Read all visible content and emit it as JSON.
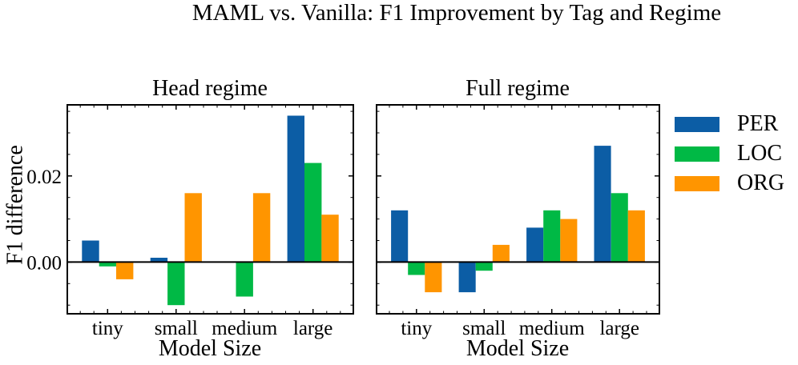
{
  "title": "MAML vs. Vanilla: F1 Improvement by Tag and Regime",
  "colors": {
    "per": "#0C5DA5",
    "loc": "#00B945",
    "org": "#FF9500",
    "axis": "#000000",
    "background": "#ffffff"
  },
  "legend": {
    "position": "right-outside-upper",
    "entries": [
      {
        "label": "PER",
        "color": "#0C5DA5"
      },
      {
        "label": "LOC",
        "color": "#00B945"
      },
      {
        "label": "ORG",
        "color": "#FF9500"
      }
    ]
  },
  "chart_data": [
    {
      "type": "bar",
      "title": "Head regime",
      "xlabel": "Model Size",
      "ylabel": "F1 difference",
      "categories": [
        "tiny",
        "small",
        "medium",
        "large"
      ],
      "series": [
        {
          "name": "PER",
          "color": "#0C5DA5",
          "values": [
            0.005,
            0.001,
            0.0,
            0.034
          ]
        },
        {
          "name": "LOC",
          "color": "#00B945",
          "values": [
            -0.001,
            -0.01,
            -0.008,
            0.023
          ]
        },
        {
          "name": "ORG",
          "color": "#FF9500",
          "values": [
            -0.004,
            0.016,
            0.016,
            0.011
          ]
        }
      ],
      "ylim": [
        -0.012,
        0.0365
      ],
      "yticks": [
        0.0,
        0.02
      ],
      "ytick_labels": [
        "0.00",
        "0.02"
      ],
      "minor_y_step": 0.005,
      "zero_line": true,
      "grid": false,
      "show_ytick_labels": true
    },
    {
      "type": "bar",
      "title": "Full regime",
      "xlabel": "Model Size",
      "ylabel": "",
      "categories": [
        "tiny",
        "small",
        "medium",
        "large"
      ],
      "series": [
        {
          "name": "PER",
          "color": "#0C5DA5",
          "values": [
            0.012,
            -0.007,
            0.008,
            0.027
          ]
        },
        {
          "name": "LOC",
          "color": "#00B945",
          "values": [
            -0.003,
            -0.002,
            0.012,
            0.016
          ]
        },
        {
          "name": "ORG",
          "color": "#FF9500",
          "values": [
            -0.007,
            0.004,
            0.01,
            0.012
          ]
        }
      ],
      "ylim": [
        -0.012,
        0.0365
      ],
      "yticks": [
        0.0,
        0.02
      ],
      "ytick_labels": [
        "0.00",
        "0.02"
      ],
      "minor_y_step": 0.005,
      "zero_line": true,
      "grid": false,
      "show_ytick_labels": false
    }
  ]
}
